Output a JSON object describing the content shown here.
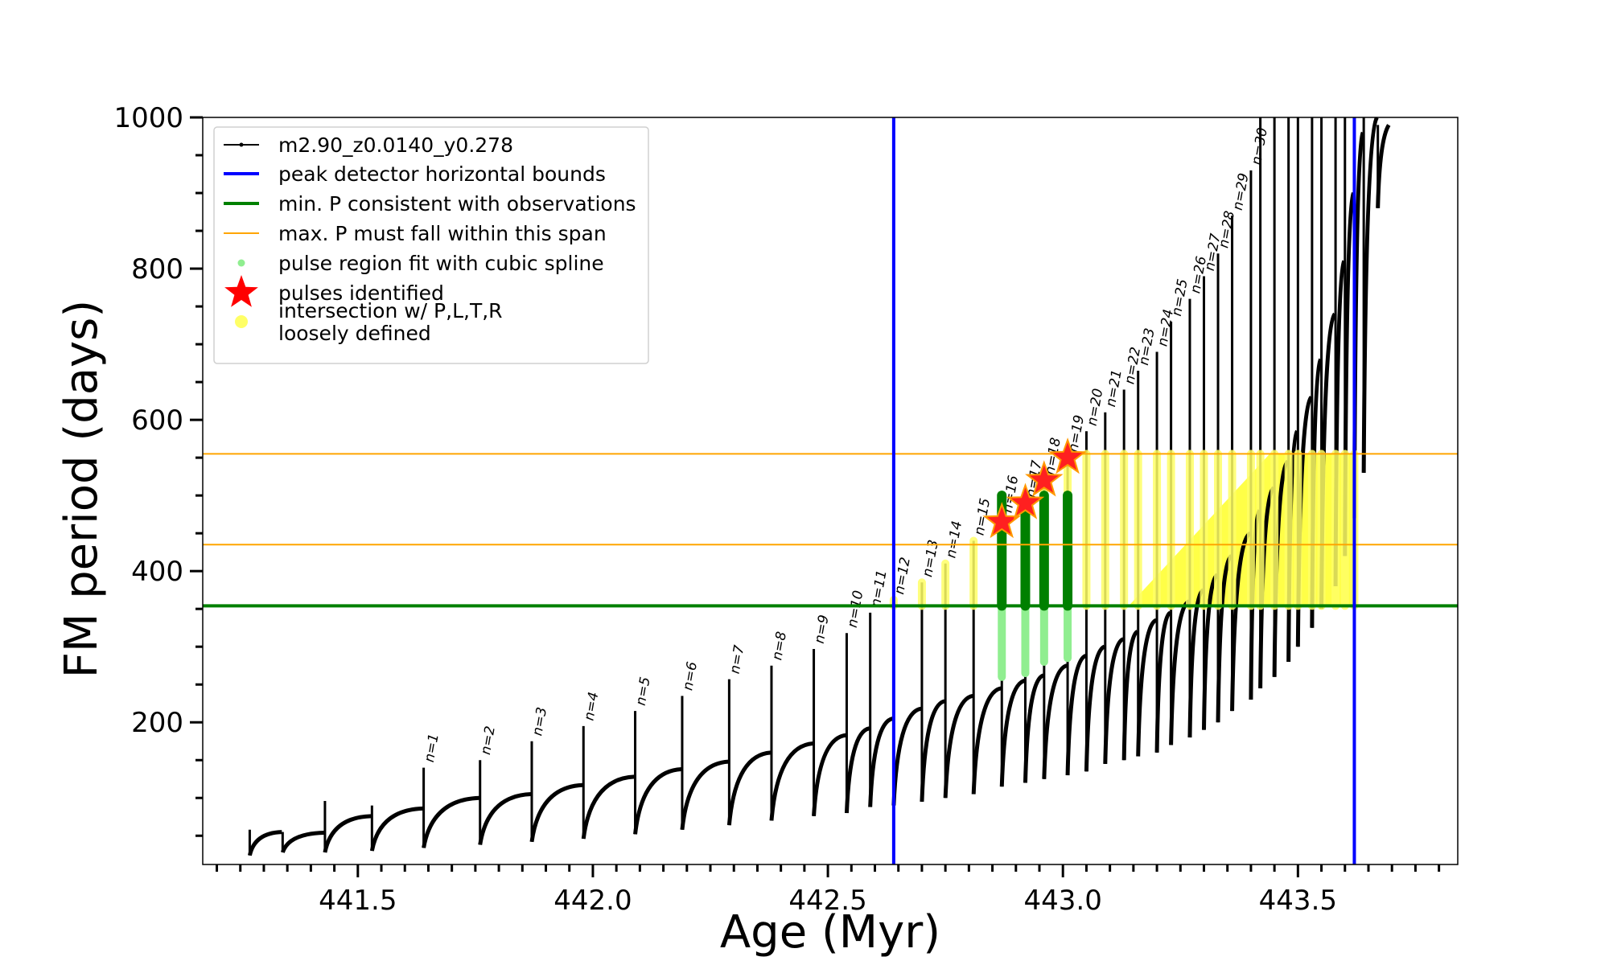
{
  "chart_data": {
    "type": "line",
    "xlabel": "Age (Myr)",
    "ylabel": "FM period (days)",
    "xlim": [
      441.17,
      443.84
    ],
    "ylim": [
      12,
      1000
    ],
    "xticks": [
      441.5,
      442.0,
      442.5,
      443.0,
      443.5
    ],
    "xtick_labels": [
      "441.5",
      "442.0",
      "442.5",
      "443.0",
      "443.5"
    ],
    "yticks": [
      200,
      400,
      600,
      800,
      1000
    ],
    "ytick_labels": [
      "200",
      "400",
      "600",
      "800",
      "1000"
    ],
    "grid": false,
    "legend_position": "top-left",
    "legend": [
      {
        "label": "m2.90_z0.0140_y0.278",
        "kind": "line-marker",
        "color": "#000000"
      },
      {
        "label": "peak detector horizontal bounds",
        "kind": "line",
        "color": "#0000ff"
      },
      {
        "label": "min. P consistent with observations",
        "kind": "line",
        "color": "#008000"
      },
      {
        "label": "max. P must fall within this span",
        "kind": "line",
        "color": "#ffa500"
      },
      {
        "label": "pulse region fit with cubic spline",
        "kind": "dot",
        "color": "#90ee90"
      },
      {
        "label": "pulses identified",
        "kind": "star",
        "color": "#ff0000"
      },
      {
        "label": "intersection w/ P,L,T,R\nloosely defined",
        "kind": "dot",
        "color": "#ffff66"
      }
    ],
    "vertical_bounds": [
      442.64,
      443.62
    ],
    "min_period": 354,
    "max_period_span": [
      435,
      555
    ],
    "series_name": "m2.90_z0.0140_y0.278",
    "pulses": [
      {
        "n": "",
        "age": 441.27,
        "peak": 58,
        "start": 24,
        "end": 55
      },
      {
        "n": "",
        "age": 441.34,
        "peak": 55,
        "start": 28,
        "end": 54
      },
      {
        "n": "",
        "age": 441.43,
        "peak": 96,
        "start": 28,
        "end": 76
      },
      {
        "n": "",
        "age": 441.53,
        "peak": 90,
        "start": 30,
        "end": 86
      },
      {
        "n": "n=1",
        "age": 441.64,
        "peak": 140,
        "start": 34,
        "end": 100
      },
      {
        "n": "n=2",
        "age": 441.76,
        "peak": 150,
        "start": 38,
        "end": 105
      },
      {
        "n": "n=3",
        "age": 441.87,
        "peak": 175,
        "start": 42,
        "end": 117
      },
      {
        "n": "n=4",
        "age": 441.98,
        "peak": 195,
        "start": 46,
        "end": 128
      },
      {
        "n": "n=5",
        "age": 442.09,
        "peak": 215,
        "start": 52,
        "end": 138
      },
      {
        "n": "n=6",
        "age": 442.19,
        "peak": 235,
        "start": 58,
        "end": 148
      },
      {
        "n": "n=7",
        "age": 442.29,
        "peak": 257,
        "start": 64,
        "end": 160
      },
      {
        "n": "n=8",
        "age": 442.38,
        "peak": 275,
        "start": 70,
        "end": 172
      },
      {
        "n": "n=9",
        "age": 442.47,
        "peak": 297,
        "start": 76,
        "end": 183
      },
      {
        "n": "n=10",
        "age": 442.54,
        "peak": 318,
        "start": 80,
        "end": 192
      },
      {
        "n": "n=11",
        "age": 442.59,
        "peak": 345,
        "start": 88,
        "end": 205
      },
      {
        "n": "n=12",
        "age": 442.64,
        "peak": 362,
        "start": 90,
        "end": 218
      },
      {
        "n": "n=13",
        "age": 442.7,
        "peak": 385,
        "start": 95,
        "end": 228
      },
      {
        "n": "n=14",
        "age": 442.75,
        "peak": 410,
        "start": 100,
        "end": 235
      },
      {
        "n": "n=15",
        "age": 442.81,
        "peak": 440,
        "start": 105,
        "end": 245
      },
      {
        "n": "n=16",
        "age": 442.87,
        "peak": 470,
        "start": 115,
        "end": 255
      },
      {
        "n": "n=17",
        "age": 442.92,
        "peak": 490,
        "start": 120,
        "end": 262
      },
      {
        "n": "n=18",
        "age": 442.96,
        "peak": 520,
        "start": 125,
        "end": 275
      },
      {
        "n": "n=19",
        "age": 443.01,
        "peak": 550,
        "start": 130,
        "end": 288
      },
      {
        "n": "n=20",
        "age": 443.05,
        "peak": 585,
        "start": 135,
        "end": 300
      },
      {
        "n": "n=21",
        "age": 443.09,
        "peak": 610,
        "start": 145,
        "end": 310
      },
      {
        "n": "n=22",
        "age": 443.13,
        "peak": 640,
        "start": 150,
        "end": 320
      },
      {
        "n": "n=23",
        "age": 443.16,
        "peak": 665,
        "start": 155,
        "end": 335
      },
      {
        "n": "n=24",
        "age": 443.2,
        "peak": 690,
        "start": 160,
        "end": 345
      },
      {
        "n": "n=25",
        "age": 443.23,
        "peak": 730,
        "start": 170,
        "end": 360
      },
      {
        "n": "n=26",
        "age": 443.27,
        "peak": 760,
        "start": 180,
        "end": 375
      },
      {
        "n": "n=27",
        "age": 443.3,
        "peak": 790,
        "start": 190,
        "end": 395
      },
      {
        "n": "n=28",
        "age": 443.33,
        "peak": 820,
        "start": 200,
        "end": 420
      },
      {
        "n": "n=29",
        "age": 443.36,
        "peak": 870,
        "start": 215,
        "end": 450
      },
      {
        "n": "n=30",
        "age": 443.4,
        "peak": 930,
        "start": 230,
        "end": 480
      },
      {
        "n": "",
        "age": 443.42,
        "peak": 1000,
        "start": 245,
        "end": 510
      },
      {
        "n": "",
        "age": 443.45,
        "peak": 1000,
        "start": 260,
        "end": 545
      },
      {
        "n": "",
        "age": 443.48,
        "peak": 1000,
        "start": 280,
        "end": 585
      },
      {
        "n": "",
        "age": 443.5,
        "peak": 1000,
        "start": 300,
        "end": 630
      },
      {
        "n": "",
        "age": 443.53,
        "peak": 1000,
        "start": 325,
        "end": 680
      },
      {
        "n": "",
        "age": 443.55,
        "peak": 1000,
        "start": 350,
        "end": 740
      },
      {
        "n": "",
        "age": 443.58,
        "peak": 1000,
        "start": 380,
        "end": 810
      },
      {
        "n": "",
        "age": 443.6,
        "peak": 1000,
        "start": 420,
        "end": 900
      },
      {
        "n": "",
        "age": 443.62,
        "peak": 1000,
        "start": 470,
        "end": 980
      },
      {
        "n": "",
        "age": 443.64,
        "peak": 1000,
        "start": 530,
        "end": 1000
      },
      {
        "n": "",
        "age": 443.67,
        "peak": 990,
        "start": 880,
        "end": 990
      }
    ],
    "identified_pulses": [
      {
        "n": 16,
        "age": 442.87,
        "period": 465
      },
      {
        "n": 17,
        "age": 442.92,
        "period": 490
      },
      {
        "n": 18,
        "age": 442.96,
        "period": 520
      },
      {
        "n": 19,
        "age": 443.01,
        "period": 550
      }
    ],
    "spline_fit_pulses": [
      {
        "n": 16,
        "age": 442.87,
        "low": 260,
        "high": 500
      },
      {
        "n": 17,
        "age": 442.92,
        "low": 265,
        "high": 495
      },
      {
        "n": 18,
        "age": 442.96,
        "low": 280,
        "high": 500
      },
      {
        "n": 19,
        "age": 443.01,
        "low": 285,
        "high": 500
      }
    ],
    "loosely_defined_region": {
      "age_start": 442.64,
      "age_end": 443.62,
      "period_min": 354,
      "period_max": 555
    }
  }
}
